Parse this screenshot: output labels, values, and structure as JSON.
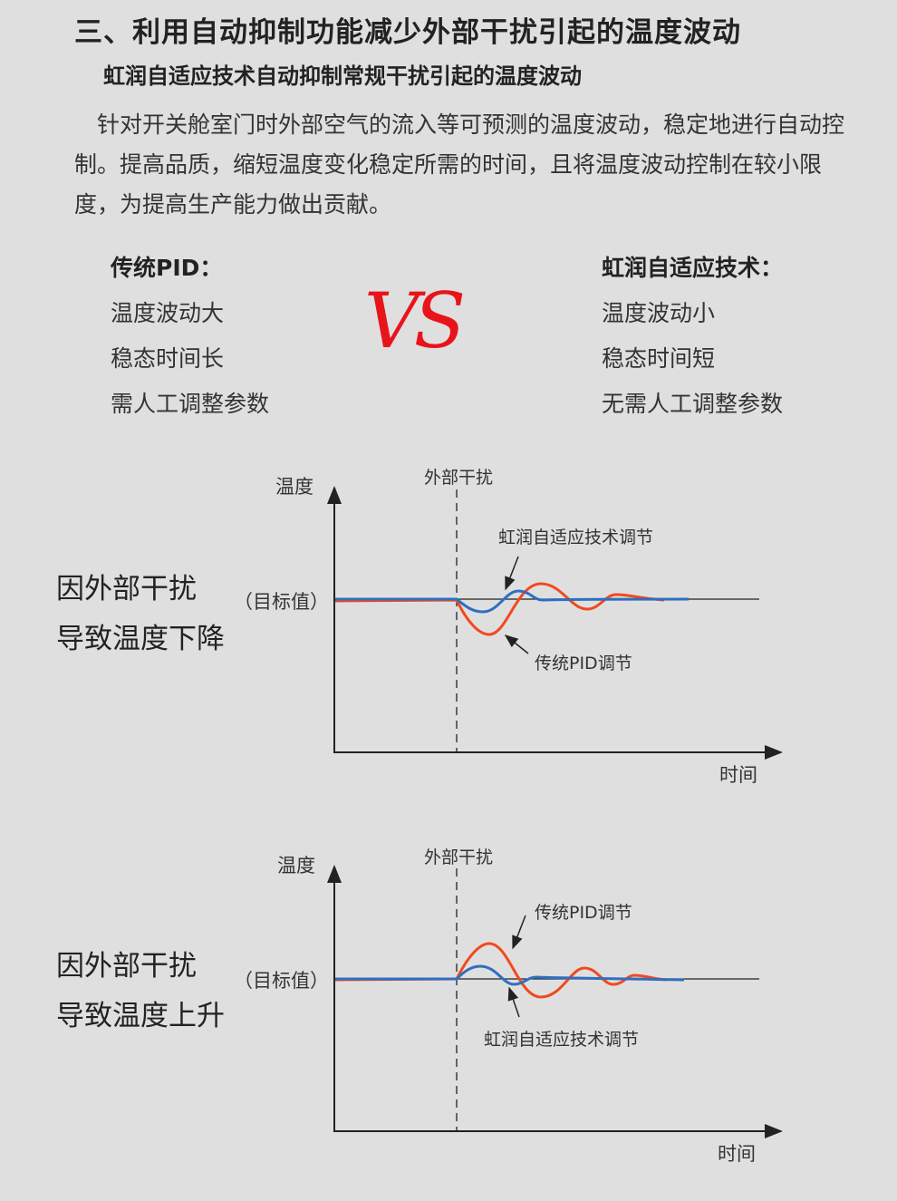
{
  "heading": "三、利用自动抑制功能减少外部干扰引起的温度波动",
  "subheading": "虹润自适应技术自动抑制常规干扰引起的温度波动",
  "intro": "　针对开关舱室门时外部空气的流入等可预测的温度波动，稳定地进行自动控制。提高品质，缩短温度变化稳定所需的时间，且将温度波动控制在较小限度，为提高生产能力做出贡献。",
  "compare": {
    "left": {
      "title": "传统PID：",
      "items": [
        "温度波动大",
        "稳态时间长",
        "需人工调整参数"
      ]
    },
    "vs": "VS",
    "right": {
      "title": "虹润自适应技术：",
      "items": [
        "温度波动小",
        "稳态时间短",
        "无需人工调整参数"
      ]
    }
  },
  "colors": {
    "traditional_pid": "#f04a1e",
    "adaptive": "#2f6fc0",
    "vs": "#e8141c"
  },
  "diagrams": [
    {
      "side_label": [
        "因外部干扰",
        "导致温度下降"
      ],
      "y_label": "温度",
      "x_label": "时间",
      "target_label": "（目标值）",
      "event_label": "外部干扰",
      "adaptive_label": "虹润自适应技术调节",
      "pid_label": "传统PID调节"
    },
    {
      "side_label": [
        "因外部干扰",
        "导致温度上升"
      ],
      "y_label": "温度",
      "x_label": "时间",
      "target_label": "（目标值）",
      "event_label": "外部干扰",
      "adaptive_label": "虹润自适应技术调节",
      "pid_label": "传统PID调节"
    }
  ]
}
